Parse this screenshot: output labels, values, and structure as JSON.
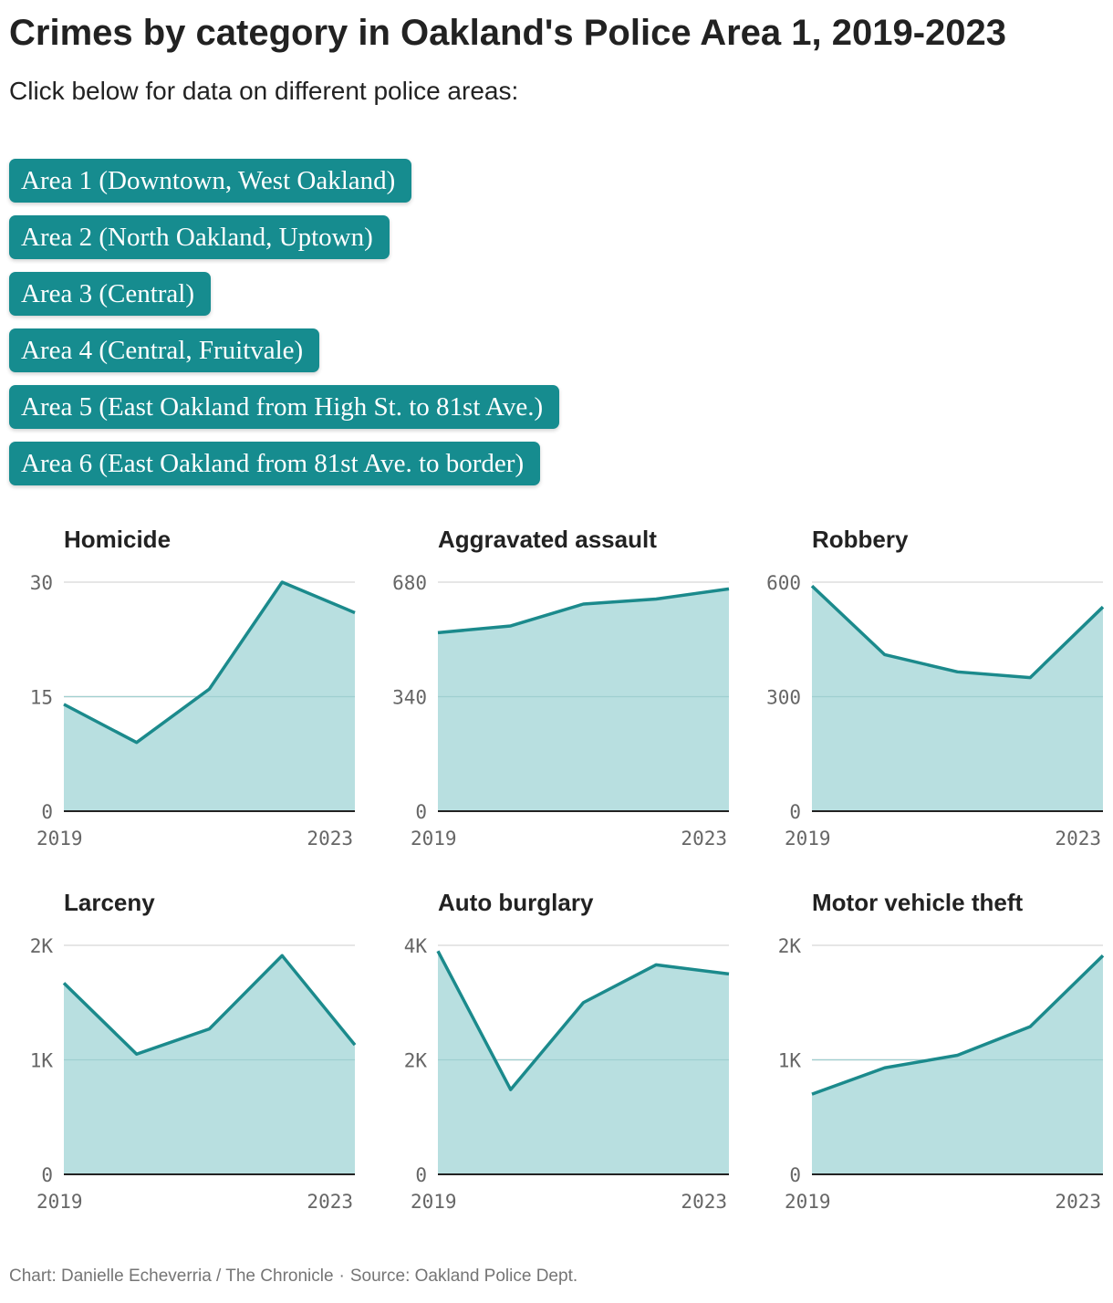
{
  "title": "Crimes by category in Oakland's Police Area 1, 2019-2023",
  "subtitle": "Click below for data on different police areas:",
  "area_buttons": [
    {
      "label": "Area 1 (Downtown, West Oakland)"
    },
    {
      "label": "Area 2 (North Oakland, Uptown)"
    },
    {
      "label": "Area 3 (Central)"
    },
    {
      "label": "Area 4 (Central, Fruitvale)"
    },
    {
      "label": "Area 5 (East Oakland from High St. to 81st Ave.)"
    },
    {
      "label": "Area 6 (East Oakland from 81st Ave. to border)"
    }
  ],
  "colors": {
    "accent": "#168c8f",
    "line": "#1b8a8c",
    "fill": "#b8dfe0",
    "grid": "#dddddd",
    "axis": "#222222",
    "tick": "#666666",
    "button_text": "#ffffff"
  },
  "chart_data": [
    {
      "type": "area",
      "title": "Homicide",
      "x": [
        2019,
        2020,
        2021,
        2022,
        2023
      ],
      "values": [
        14,
        9,
        16,
        30,
        26
      ],
      "ylim": [
        0,
        30
      ],
      "yticks": [
        0,
        15,
        30
      ],
      "ytick_labels": [
        "0",
        "15",
        "30"
      ],
      "xtick_labels": [
        "2019",
        "2023"
      ],
      "grid": true
    },
    {
      "type": "area",
      "title": "Aggravated assault",
      "x": [
        2019,
        2020,
        2021,
        2022,
        2023
      ],
      "values": [
        530,
        550,
        615,
        630,
        660
      ],
      "ylim": [
        0,
        680
      ],
      "yticks": [
        0,
        340,
        680
      ],
      "ytick_labels": [
        "0",
        "340",
        "680"
      ],
      "xtick_labels": [
        "2019",
        "2023"
      ],
      "grid": true
    },
    {
      "type": "area",
      "title": "Robbery",
      "x": [
        2019,
        2020,
        2021,
        2022,
        2023
      ],
      "values": [
        590,
        410,
        365,
        350,
        535
      ],
      "ylim": [
        0,
        600
      ],
      "yticks": [
        0,
        300,
        600
      ],
      "ytick_labels": [
        "0",
        "300",
        "600"
      ],
      "xtick_labels": [
        "2019",
        "2023"
      ],
      "grid": true
    },
    {
      "type": "area",
      "title": "Larceny",
      "x": [
        2019,
        2020,
        2021,
        2022,
        2023
      ],
      "values": [
        1670,
        1050,
        1270,
        1910,
        1130
      ],
      "ylim": [
        0,
        2000
      ],
      "yticks": [
        0,
        1000,
        2000
      ],
      "ytick_labels": [
        "0",
        "1K",
        "2K"
      ],
      "xtick_labels": [
        "2019",
        "2023"
      ],
      "grid": true
    },
    {
      "type": "area",
      "title": "Auto burglary",
      "x": [
        2019,
        2020,
        2021,
        2022,
        2023
      ],
      "values": [
        3900,
        1480,
        3000,
        3660,
        3500
      ],
      "ylim": [
        0,
        4000
      ],
      "yticks": [
        0,
        2000,
        4000
      ],
      "ytick_labels": [
        "0",
        "2K",
        "4K"
      ],
      "xtick_labels": [
        "2019",
        "2023"
      ],
      "grid": true
    },
    {
      "type": "area",
      "title": "Motor vehicle theft",
      "x": [
        2019,
        2020,
        2021,
        2022,
        2023
      ],
      "values": [
        700,
        930,
        1040,
        1290,
        1910
      ],
      "ylim": [
        0,
        2000
      ],
      "yticks": [
        0,
        1000,
        2000
      ],
      "ytick_labels": [
        "0",
        "1K",
        "2K"
      ],
      "xtick_labels": [
        "2019",
        "2023"
      ],
      "grid": true
    }
  ],
  "footer": {
    "credit": "Chart: Danielle Echeverria / The Chronicle",
    "separator": "·",
    "source": "Source: Oakland Police Dept."
  }
}
